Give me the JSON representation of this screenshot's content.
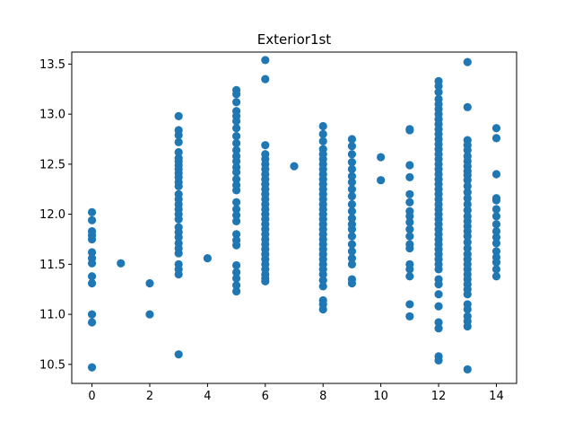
{
  "chart_data": {
    "type": "scatter",
    "title": "Exterior1st",
    "xlabel": "",
    "ylabel": "",
    "xlim": [
      -0.7,
      14.7
    ],
    "ylim": [
      10.31,
      13.62
    ],
    "xticks": [
      0,
      2,
      4,
      6,
      8,
      10,
      12,
      14
    ],
    "yticks": [
      10.5,
      11.0,
      11.5,
      12.0,
      12.5,
      13.0,
      13.5
    ],
    "ytick_labels": [
      "10.5",
      "11.0",
      "11.5",
      "12.0",
      "12.5",
      "13.0",
      "13.5"
    ],
    "marker_color": "#1f77b4",
    "grid": false,
    "points": [
      [
        0,
        12.02
      ],
      [
        0,
        11.94
      ],
      [
        0,
        11.83
      ],
      [
        0,
        11.79
      ],
      [
        0,
        11.75
      ],
      [
        0,
        11.62
      ],
      [
        0,
        11.56
      ],
      [
        0,
        11.51
      ],
      [
        0,
        11.38
      ],
      [
        0,
        11.31
      ],
      [
        0,
        11.0
      ],
      [
        0,
        10.92
      ],
      [
        0,
        10.47
      ],
      [
        1,
        11.51
      ],
      [
        2,
        11.31
      ],
      [
        2,
        11.0
      ],
      [
        3,
        12.98
      ],
      [
        3,
        12.84
      ],
      [
        3,
        12.79
      ],
      [
        3,
        12.72
      ],
      [
        3,
        12.62
      ],
      [
        3,
        12.56
      ],
      [
        3,
        12.53
      ],
      [
        3,
        12.49
      ],
      [
        3,
        12.45
      ],
      [
        3,
        12.41
      ],
      [
        3,
        12.37
      ],
      [
        3,
        12.32
      ],
      [
        3,
        12.28
      ],
      [
        3,
        12.2
      ],
      [
        3,
        12.15
      ],
      [
        3,
        12.1
      ],
      [
        3,
        12.05
      ],
      [
        3,
        12.0
      ],
      [
        3,
        11.95
      ],
      [
        3,
        11.87
      ],
      [
        3,
        11.82
      ],
      [
        3,
        11.77
      ],
      [
        3,
        11.71
      ],
      [
        3,
        11.66
      ],
      [
        3,
        11.61
      ],
      [
        3,
        11.5
      ],
      [
        3,
        11.45
      ],
      [
        3,
        11.4
      ],
      [
        3,
        10.6
      ],
      [
        4,
        11.56
      ],
      [
        5,
        13.24
      ],
      [
        5,
        13.2
      ],
      [
        5,
        13.12
      ],
      [
        5,
        13.03
      ],
      [
        5,
        12.98
      ],
      [
        5,
        12.93
      ],
      [
        5,
        12.86
      ],
      [
        5,
        12.78
      ],
      [
        5,
        12.71
      ],
      [
        5,
        12.64
      ],
      [
        5,
        12.58
      ],
      [
        5,
        12.53
      ],
      [
        5,
        12.47
      ],
      [
        5,
        12.42
      ],
      [
        5,
        12.35
      ],
      [
        5,
        12.29
      ],
      [
        5,
        12.24
      ],
      [
        5,
        12.12
      ],
      [
        5,
        12.05
      ],
      [
        5,
        11.99
      ],
      [
        5,
        11.93
      ],
      [
        5,
        11.8
      ],
      [
        5,
        11.74
      ],
      [
        5,
        11.69
      ],
      [
        5,
        11.49
      ],
      [
        5,
        11.42
      ],
      [
        5,
        11.36
      ],
      [
        5,
        11.29
      ],
      [
        5,
        11.23
      ],
      [
        6,
        13.54
      ],
      [
        6,
        13.35
      ],
      [
        6,
        12.69
      ],
      [
        6,
        12.6
      ],
      [
        6,
        12.55
      ],
      [
        6,
        12.5
      ],
      [
        6,
        12.45
      ],
      [
        6,
        12.4
      ],
      [
        6,
        12.35
      ],
      [
        6,
        12.3
      ],
      [
        6,
        12.25
      ],
      [
        6,
        12.2
      ],
      [
        6,
        12.15
      ],
      [
        6,
        12.1
      ],
      [
        6,
        12.05
      ],
      [
        6,
        12.0
      ],
      [
        6,
        11.95
      ],
      [
        6,
        11.9
      ],
      [
        6,
        11.85
      ],
      [
        6,
        11.8
      ],
      [
        6,
        11.75
      ],
      [
        6,
        11.7
      ],
      [
        6,
        11.65
      ],
      [
        6,
        11.6
      ],
      [
        6,
        11.55
      ],
      [
        6,
        11.5
      ],
      [
        6,
        11.45
      ],
      [
        6,
        11.4
      ],
      [
        6,
        11.36
      ],
      [
        6,
        11.33
      ],
      [
        7,
        12.48
      ],
      [
        8,
        12.88
      ],
      [
        8,
        12.8
      ],
      [
        8,
        12.73
      ],
      [
        8,
        12.65
      ],
      [
        8,
        12.6
      ],
      [
        8,
        12.55
      ],
      [
        8,
        12.5
      ],
      [
        8,
        12.45
      ],
      [
        8,
        12.4
      ],
      [
        8,
        12.35
      ],
      [
        8,
        12.3
      ],
      [
        8,
        12.25
      ],
      [
        8,
        12.2
      ],
      [
        8,
        12.15
      ],
      [
        8,
        12.1
      ],
      [
        8,
        12.05
      ],
      [
        8,
        12.0
      ],
      [
        8,
        11.95
      ],
      [
        8,
        11.9
      ],
      [
        8,
        11.85
      ],
      [
        8,
        11.8
      ],
      [
        8,
        11.75
      ],
      [
        8,
        11.7
      ],
      [
        8,
        11.65
      ],
      [
        8,
        11.6
      ],
      [
        8,
        11.55
      ],
      [
        8,
        11.5
      ],
      [
        8,
        11.45
      ],
      [
        8,
        11.4
      ],
      [
        8,
        11.34
      ],
      [
        8,
        11.28
      ],
      [
        8,
        11.14
      ],
      [
        8,
        11.1
      ],
      [
        8,
        11.05
      ],
      [
        9,
        12.75
      ],
      [
        9,
        12.68
      ],
      [
        9,
        12.6
      ],
      [
        9,
        12.52
      ],
      [
        9,
        12.45
      ],
      [
        9,
        12.38
      ],
      [
        9,
        12.32
      ],
      [
        9,
        12.25
      ],
      [
        9,
        12.18
      ],
      [
        9,
        12.1
      ],
      [
        9,
        12.03
      ],
      [
        9,
        11.96
      ],
      [
        9,
        11.9
      ],
      [
        9,
        11.85
      ],
      [
        9,
        11.78
      ],
      [
        9,
        11.7
      ],
      [
        9,
        11.63
      ],
      [
        9,
        11.56
      ],
      [
        9,
        11.5
      ],
      [
        9,
        11.35
      ],
      [
        9,
        11.31
      ],
      [
        10,
        12.57
      ],
      [
        10,
        12.34
      ],
      [
        11,
        12.85
      ],
      [
        11,
        12.84
      ],
      [
        11,
        12.49
      ],
      [
        11,
        12.37
      ],
      [
        11,
        12.2
      ],
      [
        11,
        12.12
      ],
      [
        11,
        12.03
      ],
      [
        11,
        11.98
      ],
      [
        11,
        11.92
      ],
      [
        11,
        11.85
      ],
      [
        11,
        11.78
      ],
      [
        11,
        11.7
      ],
      [
        11,
        11.66
      ],
      [
        11,
        11.5
      ],
      [
        11,
        11.45
      ],
      [
        11,
        11.38
      ],
      [
        11,
        11.1
      ],
      [
        11,
        10.98
      ],
      [
        12,
        13.33
      ],
      [
        12,
        13.28
      ],
      [
        12,
        13.22
      ],
      [
        12,
        13.15
      ],
      [
        12,
        13.1
      ],
      [
        12,
        13.05
      ],
      [
        12,
        13.0
      ],
      [
        12,
        12.95
      ],
      [
        12,
        12.9
      ],
      [
        12,
        12.85
      ],
      [
        12,
        12.8
      ],
      [
        12,
        12.75
      ],
      [
        12,
        12.7
      ],
      [
        12,
        12.65
      ],
      [
        12,
        12.6
      ],
      [
        12,
        12.55
      ],
      [
        12,
        12.5
      ],
      [
        12,
        12.45
      ],
      [
        12,
        12.4
      ],
      [
        12,
        12.35
      ],
      [
        12,
        12.3
      ],
      [
        12,
        12.25
      ],
      [
        12,
        12.2
      ],
      [
        12,
        12.15
      ],
      [
        12,
        12.1
      ],
      [
        12,
        12.05
      ],
      [
        12,
        12.0
      ],
      [
        12,
        11.95
      ],
      [
        12,
        11.9
      ],
      [
        12,
        11.85
      ],
      [
        12,
        11.8
      ],
      [
        12,
        11.75
      ],
      [
        12,
        11.7
      ],
      [
        12,
        11.65
      ],
      [
        12,
        11.6
      ],
      [
        12,
        11.55
      ],
      [
        12,
        11.5
      ],
      [
        12,
        11.45
      ],
      [
        12,
        11.35
      ],
      [
        12,
        11.3
      ],
      [
        12,
        11.2
      ],
      [
        12,
        11.08
      ],
      [
        12,
        10.92
      ],
      [
        12,
        10.86
      ],
      [
        12,
        10.58
      ],
      [
        12,
        10.54
      ],
      [
        13,
        13.52
      ],
      [
        13,
        13.07
      ],
      [
        13,
        12.74
      ],
      [
        13,
        12.69
      ],
      [
        13,
        12.64
      ],
      [
        13,
        12.58
      ],
      [
        13,
        12.53
      ],
      [
        13,
        12.48
      ],
      [
        13,
        12.43
      ],
      [
        13,
        12.39
      ],
      [
        13,
        12.34
      ],
      [
        13,
        12.28
      ],
      [
        13,
        12.22
      ],
      [
        13,
        12.16
      ],
      [
        13,
        12.1
      ],
      [
        13,
        12.04
      ],
      [
        13,
        11.98
      ],
      [
        13,
        11.93
      ],
      [
        13,
        11.88
      ],
      [
        13,
        11.83
      ],
      [
        13,
        11.78
      ],
      [
        13,
        11.72
      ],
      [
        13,
        11.66
      ],
      [
        13,
        11.6
      ],
      [
        13,
        11.55
      ],
      [
        13,
        11.5
      ],
      [
        13,
        11.45
      ],
      [
        13,
        11.4
      ],
      [
        13,
        11.35
      ],
      [
        13,
        11.3
      ],
      [
        13,
        11.25
      ],
      [
        13,
        11.2
      ],
      [
        13,
        11.1
      ],
      [
        13,
        11.05
      ],
      [
        13,
        10.98
      ],
      [
        13,
        10.93
      ],
      [
        13,
        10.88
      ],
      [
        13,
        10.45
      ],
      [
        14,
        12.86
      ],
      [
        14,
        12.76
      ],
      [
        14,
        12.4
      ],
      [
        14,
        12.16
      ],
      [
        14,
        12.14
      ],
      [
        14,
        12.05
      ],
      [
        14,
        11.98
      ],
      [
        14,
        11.9
      ],
      [
        14,
        11.83
      ],
      [
        14,
        11.77
      ],
      [
        14,
        11.71
      ],
      [
        14,
        11.63
      ],
      [
        14,
        11.57
      ],
      [
        14,
        11.52
      ],
      [
        14,
        11.45
      ],
      [
        14,
        11.38
      ]
    ]
  }
}
